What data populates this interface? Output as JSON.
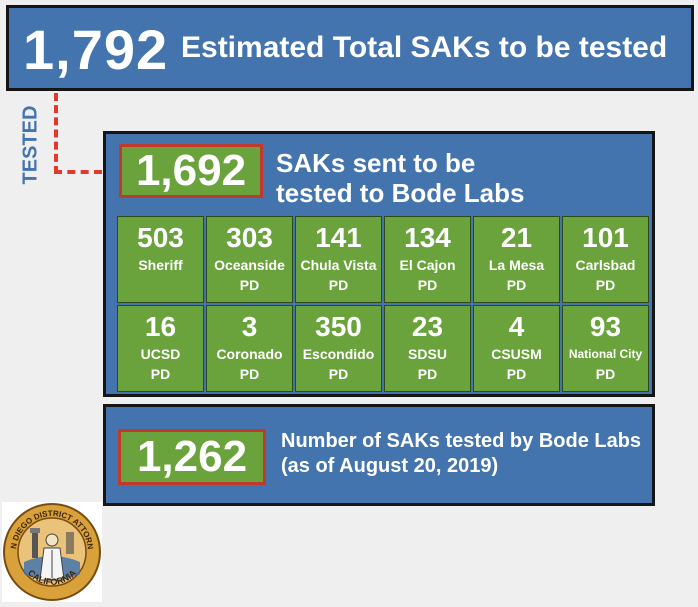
{
  "header": {
    "total": "1,792",
    "label": "Estimated Total SAKs to be tested"
  },
  "tested_label": "TESTED",
  "sent": {
    "count": "1,692",
    "line1": "SAKs sent to be",
    "line2": "tested to Bode Labs",
    "agencies": [
      {
        "count": "503",
        "name_line1": "Sheriff",
        "name_line2": ""
      },
      {
        "count": "303",
        "name_line1": "Oceanside",
        "name_line2": "PD"
      },
      {
        "count": "141",
        "name_line1": "Chula Vista",
        "name_line2": "PD"
      },
      {
        "count": "134",
        "name_line1": "El Cajon",
        "name_line2": "PD"
      },
      {
        "count": "21",
        "name_line1": "La Mesa",
        "name_line2": "PD"
      },
      {
        "count": "101",
        "name_line1": "Carlsbad",
        "name_line2": "PD"
      },
      {
        "count": "16",
        "name_line1": "UCSD",
        "name_line2": "PD"
      },
      {
        "count": "3",
        "name_line1": "Coronado",
        "name_line2": "PD"
      },
      {
        "count": "350",
        "name_line1": "Escondido",
        "name_line2": "PD"
      },
      {
        "count": "23",
        "name_line1": "SDSU",
        "name_line2": "PD"
      },
      {
        "count": "4",
        "name_line1": "CSUSM",
        "name_line2": "PD"
      },
      {
        "count": "93",
        "name_line1": "National City",
        "name_line2": "PD"
      }
    ]
  },
  "tested": {
    "count": "1,262",
    "line1": "Number of SAKs tested by Bode Labs",
    "line2": "(as of August 20, 2019)"
  },
  "seal": {
    "text_top": "SAN DIEGO DISTRICT ATTORNEY",
    "text_bottom": "CALIFORNIA"
  },
  "colors": {
    "blue": "#4474ad",
    "green": "#6aa23c",
    "red": "#c0392b",
    "dash": "#e13a2d"
  }
}
